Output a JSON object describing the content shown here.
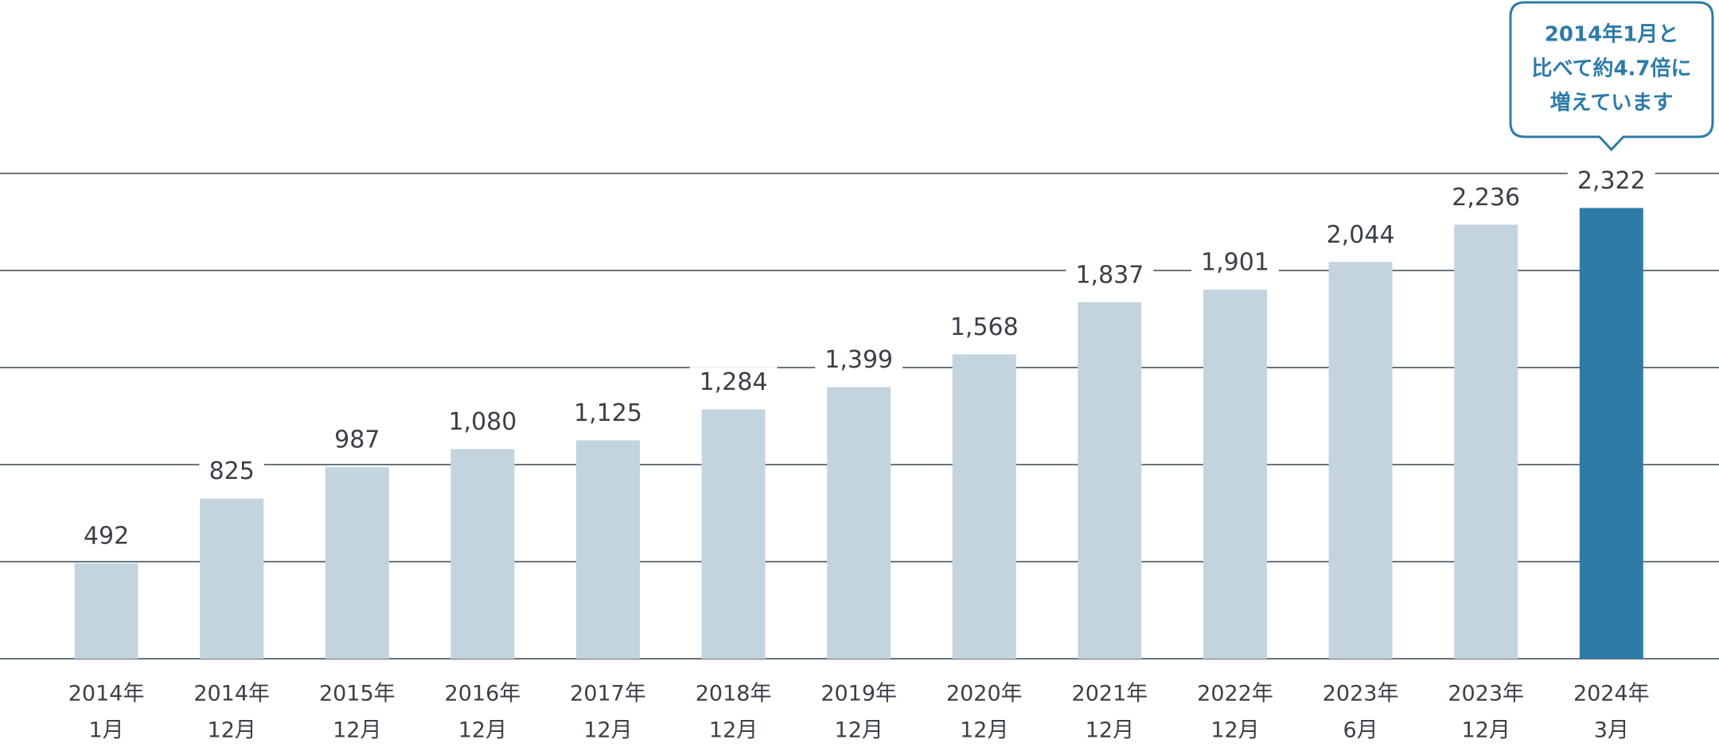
{
  "chart_data": {
    "type": "bar",
    "categories": [
      [
        "2014年",
        "1月"
      ],
      [
        "2014年",
        "12月"
      ],
      [
        "2015年",
        "12月"
      ],
      [
        "2016年",
        "12月"
      ],
      [
        "2017年",
        "12月"
      ],
      [
        "2018年",
        "12月"
      ],
      [
        "2019年",
        "12月"
      ],
      [
        "2020年",
        "12月"
      ],
      [
        "2021年",
        "12月"
      ],
      [
        "2022年",
        "12月"
      ],
      [
        "2023年",
        "6月"
      ],
      [
        "2023年",
        "12月"
      ],
      [
        "2024年",
        "3月"
      ]
    ],
    "values": [
      492,
      825,
      987,
      1080,
      1125,
      1284,
      1399,
      1568,
      1837,
      1901,
      2044,
      2236,
      2322
    ],
    "value_labels": [
      "492",
      "825",
      "987",
      "1,080",
      "1,125",
      "1,284",
      "1,399",
      "1,568",
      "1,837",
      "1,901",
      "2,044",
      "2,236",
      "2,322"
    ],
    "colors": [
      "#c3d4de",
      "#c3d4de",
      "#c3d4de",
      "#c3d4de",
      "#c3d4de",
      "#c3d4de",
      "#c3d4de",
      "#c3d4de",
      "#c3d4de",
      "#c3d4de",
      "#c3d4de",
      "#c3d4de",
      "#2f7ba8"
    ],
    "ylim": [
      0,
      2500
    ],
    "yticks": [
      0,
      500,
      1000,
      1500,
      2000,
      2500
    ],
    "grid": true,
    "grid_color": "#3a4750",
    "annotation": {
      "lines": [
        "2014年1月と",
        "比べて約4.7倍に",
        "増えています"
      ],
      "color": "#2f7ba8"
    }
  }
}
